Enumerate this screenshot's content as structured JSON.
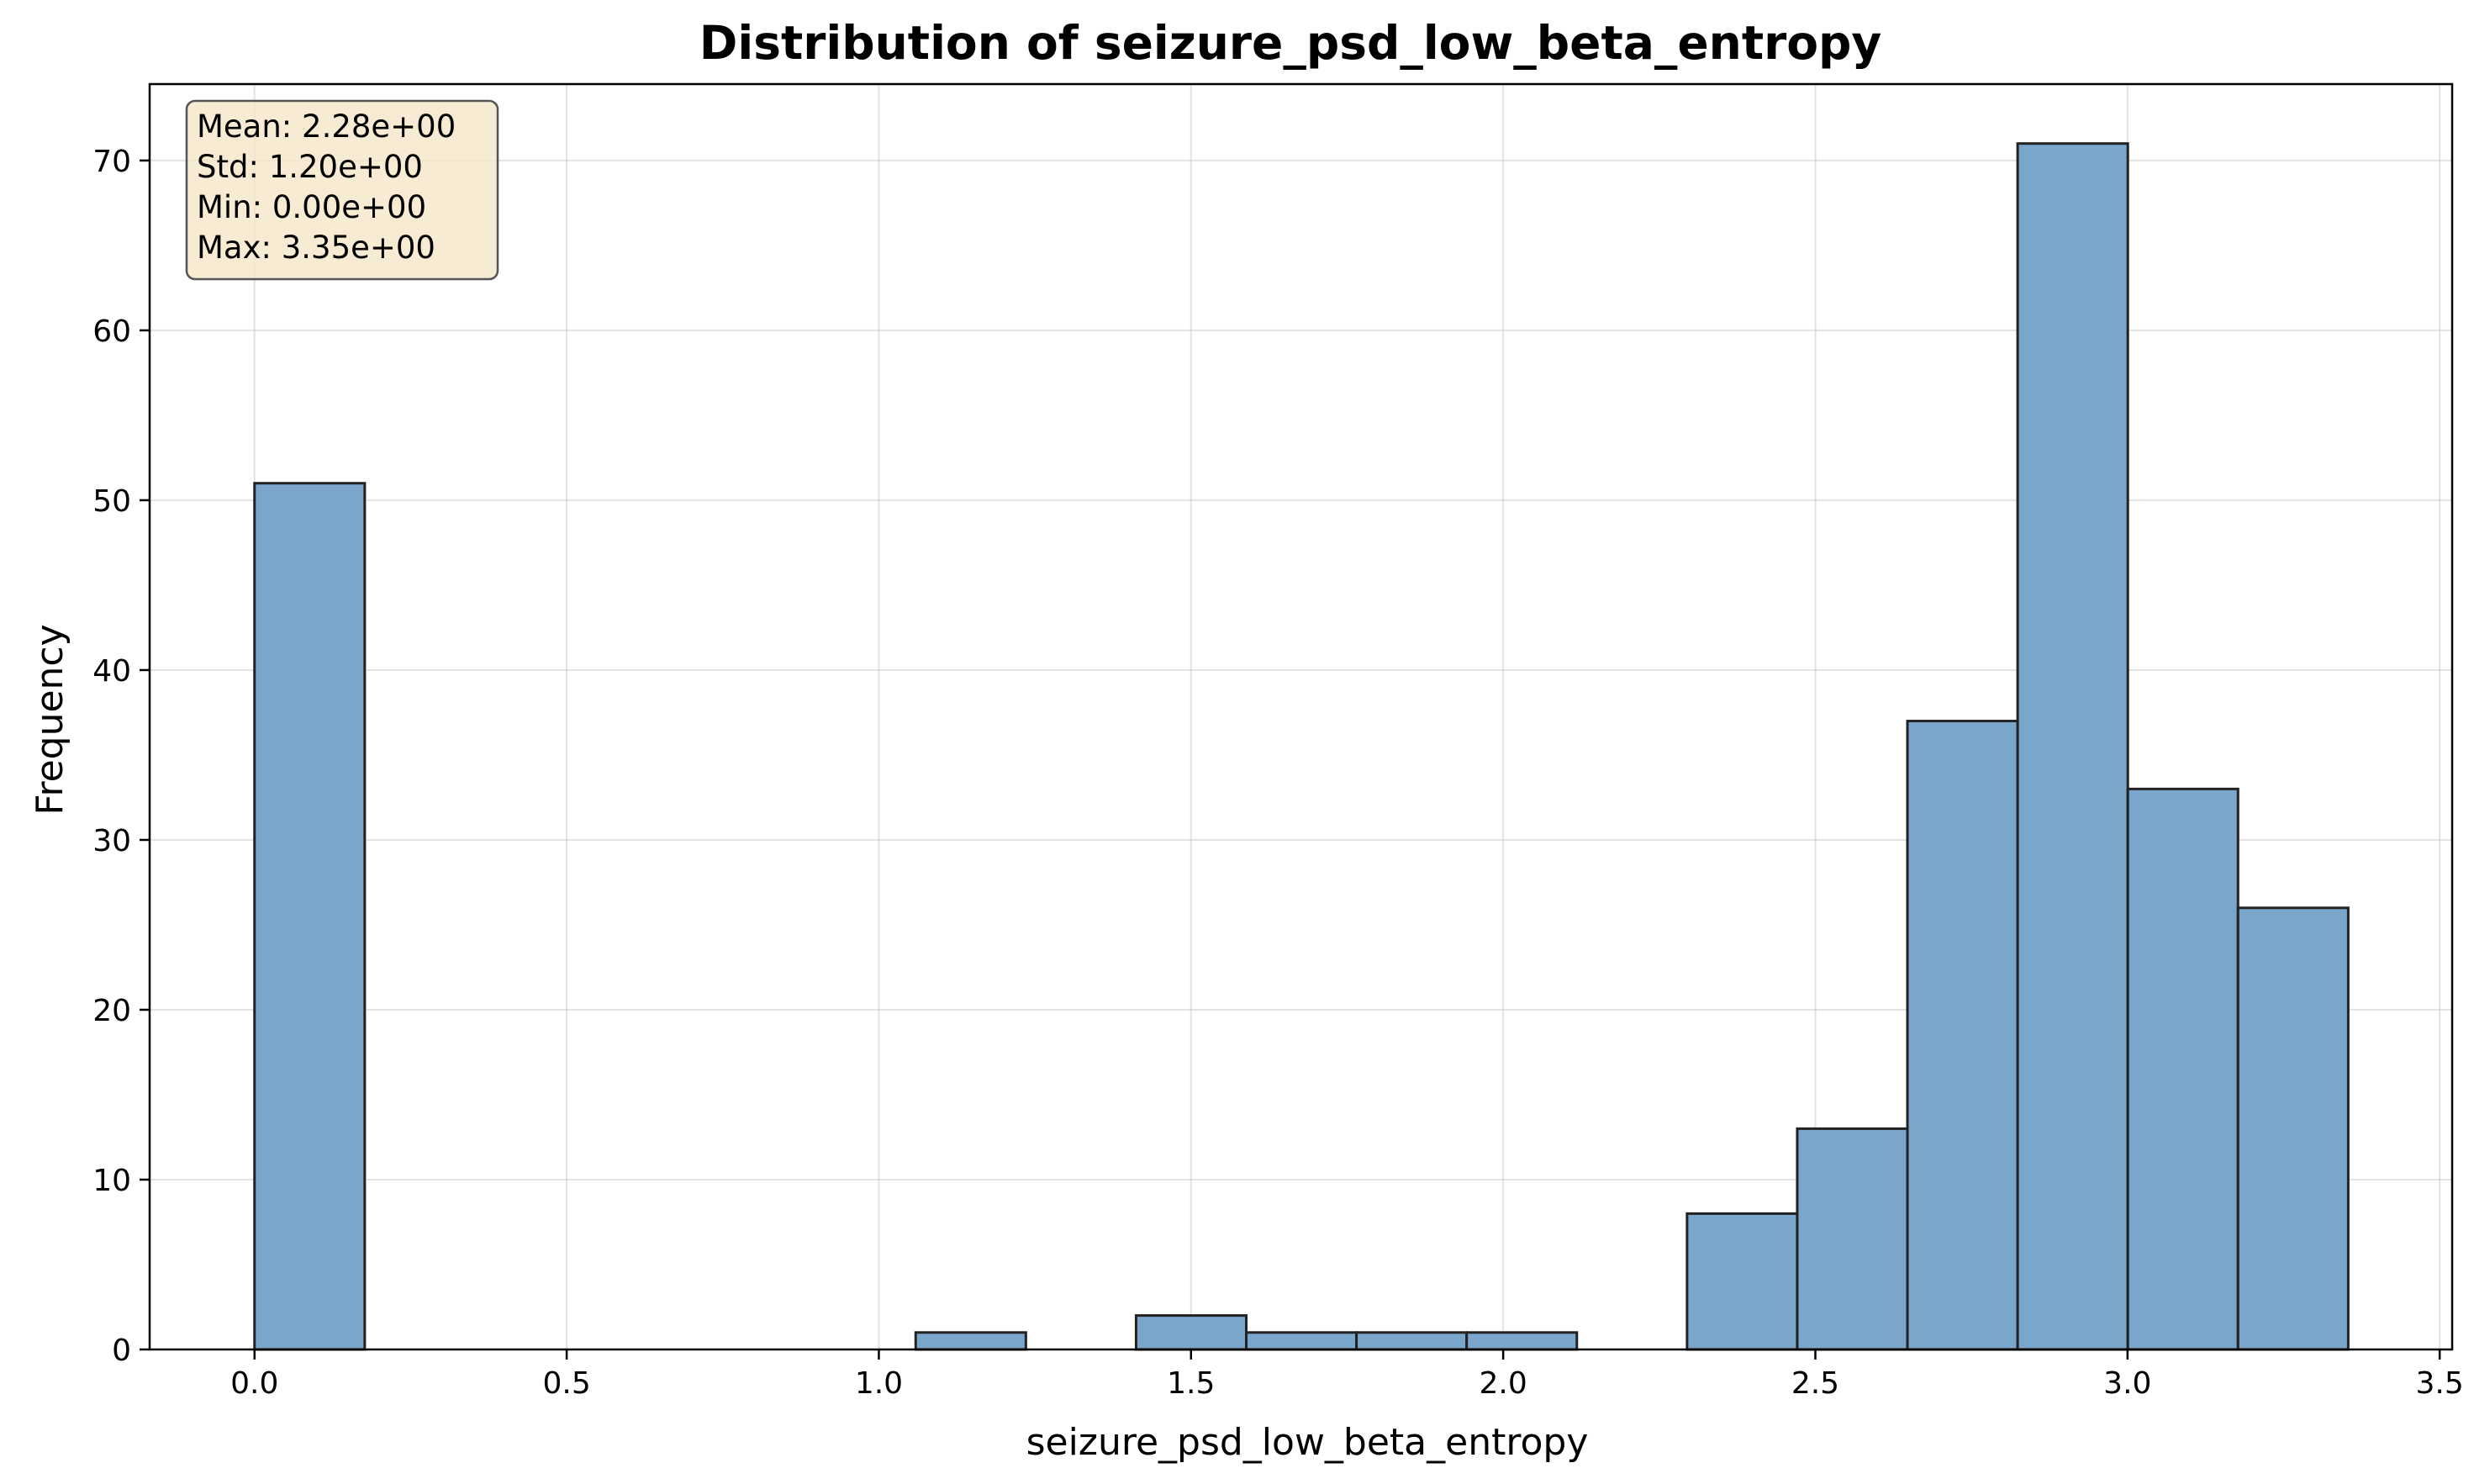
{
  "chart_data": {
    "type": "bar",
    "title": "Distribution of seizure_psd_low_beta_entropy",
    "xlabel": "seizure_psd_low_beta_entropy",
    "ylabel": "Frequency",
    "xlim": [
      -0.168,
      3.52
    ],
    "ylim": [
      0,
      74.5
    ],
    "xticks": [
      "0.0",
      "0.5",
      "1.0",
      "1.5",
      "2.0",
      "2.5",
      "3.0",
      "3.5"
    ],
    "xtick_values": [
      0.0,
      0.5,
      1.0,
      1.5,
      2.0,
      2.5,
      3.0,
      3.5
    ],
    "yticks": [
      "0",
      "10",
      "20",
      "30",
      "40",
      "50",
      "60",
      "70"
    ],
    "ytick_values": [
      0,
      10,
      20,
      30,
      40,
      50,
      60,
      70
    ],
    "grid": true,
    "bar_color": "#7ba6cb",
    "edge_color": "#222222",
    "bins": [
      {
        "x0": 0.0,
        "x1": 0.1765,
        "count": 51
      },
      {
        "x0": 0.1765,
        "x1": 0.353,
        "count": 0
      },
      {
        "x0": 0.353,
        "x1": 0.5295,
        "count": 0
      },
      {
        "x0": 0.5295,
        "x1": 0.706,
        "count": 0
      },
      {
        "x0": 0.706,
        "x1": 0.8825,
        "count": 0
      },
      {
        "x0": 0.8825,
        "x1": 1.059,
        "count": 0
      },
      {
        "x0": 1.059,
        "x1": 1.2355,
        "count": 1
      },
      {
        "x0": 1.2355,
        "x1": 1.412,
        "count": 0
      },
      {
        "x0": 1.412,
        "x1": 1.5885,
        "count": 2
      },
      {
        "x0": 1.5885,
        "x1": 1.765,
        "count": 1
      },
      {
        "x0": 1.765,
        "x1": 1.9415,
        "count": 1
      },
      {
        "x0": 1.9415,
        "x1": 2.118,
        "count": 1
      },
      {
        "x0": 2.118,
        "x1": 2.2945,
        "count": 0
      },
      {
        "x0": 2.2945,
        "x1": 2.471,
        "count": 8
      },
      {
        "x0": 2.471,
        "x1": 2.6475,
        "count": 13
      },
      {
        "x0": 2.6475,
        "x1": 2.824,
        "count": 37
      },
      {
        "x0": 2.824,
        "x1": 3.0005,
        "count": 71
      },
      {
        "x0": 3.0005,
        "x1": 3.177,
        "count": 33
      },
      {
        "x0": 3.177,
        "x1": 3.3535,
        "count": 26
      }
    ],
    "stats_box": {
      "lines": [
        "Mean: 2.28e+00",
        "Std: 1.20e+00",
        "Min: 0.00e+00",
        "Max: 3.35e+00"
      ],
      "placement": "top-left",
      "background": "#f5e6c8"
    }
  }
}
